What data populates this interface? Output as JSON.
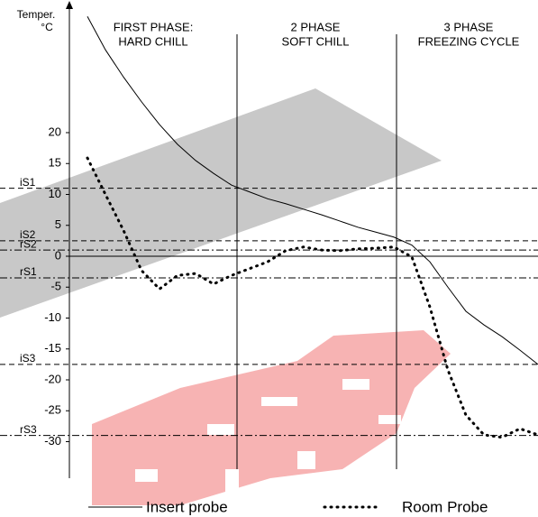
{
  "chart_data": {
    "type": "line",
    "ylabel": [
      "Temper.",
      "°C"
    ],
    "phases": [
      [
        "FIRST PHASE:",
        "HARD CHILL"
      ],
      [
        "2 PHASE",
        "SOFT CHILL"
      ],
      [
        "3 PHASE",
        "FREEZING CYCLE"
      ]
    ],
    "categories": [
      null,
      null,
      null,
      null,
      null,
      null,
      null,
      null,
      null,
      null,
      null,
      null,
      null,
      null,
      null,
      null,
      null,
      null,
      null,
      null,
      null,
      null,
      null,
      null,
      null,
      null,
      null
    ],
    "series": [
      {
        "name": "Insert probe",
        "color": "#000000",
        "style": "solid",
        "values": [
          null,
          38.8,
          33.4,
          29,
          25,
          21.3,
          18.1,
          15.5,
          13.4,
          11.5,
          10.4,
          9.3,
          8.5,
          7.6,
          6.7,
          5.7,
          4.7,
          3.9,
          3.1,
          1.8,
          -0.9,
          -5,
          -8.9,
          -11.1,
          -13,
          -15.2,
          -17.5
        ]
      },
      {
        "name": "Room Probe",
        "color": "#000000",
        "style": "dotted",
        "values": [
          null,
          15.9,
          10,
          4.2,
          -2.3,
          -5.3,
          -3.1,
          -2.8,
          -4.5,
          -3.1,
          -2,
          -0.9,
          0.9,
          1.5,
          1,
          0.9,
          1.2,
          1.3,
          1.5,
          -0.1,
          -8.2,
          -18.4,
          -25.7,
          -28.9,
          -29.3,
          -27.9,
          -28.9
        ]
      }
    ],
    "thresholds": [
      {
        "label": "iS1",
        "value": 11,
        "style": "dashed"
      },
      {
        "label": "iS2",
        "value": 2.5,
        "style": "dashed"
      },
      {
        "label": "rS2",
        "value": 1,
        "style": "dashdot"
      },
      {
        "label": "rS1",
        "value": -3.5,
        "style": "dashdot"
      },
      {
        "label": "iS3",
        "value": -17.5,
        "style": "dashed"
      },
      {
        "label": "rS3",
        "value": -29,
        "style": "dashdot"
      }
    ],
    "ylim": [
      -36,
      40
    ],
    "yticks": [
      20,
      15,
      10,
      5,
      0,
      -5,
      -10,
      -15,
      -20,
      -25,
      -30
    ]
  }
}
